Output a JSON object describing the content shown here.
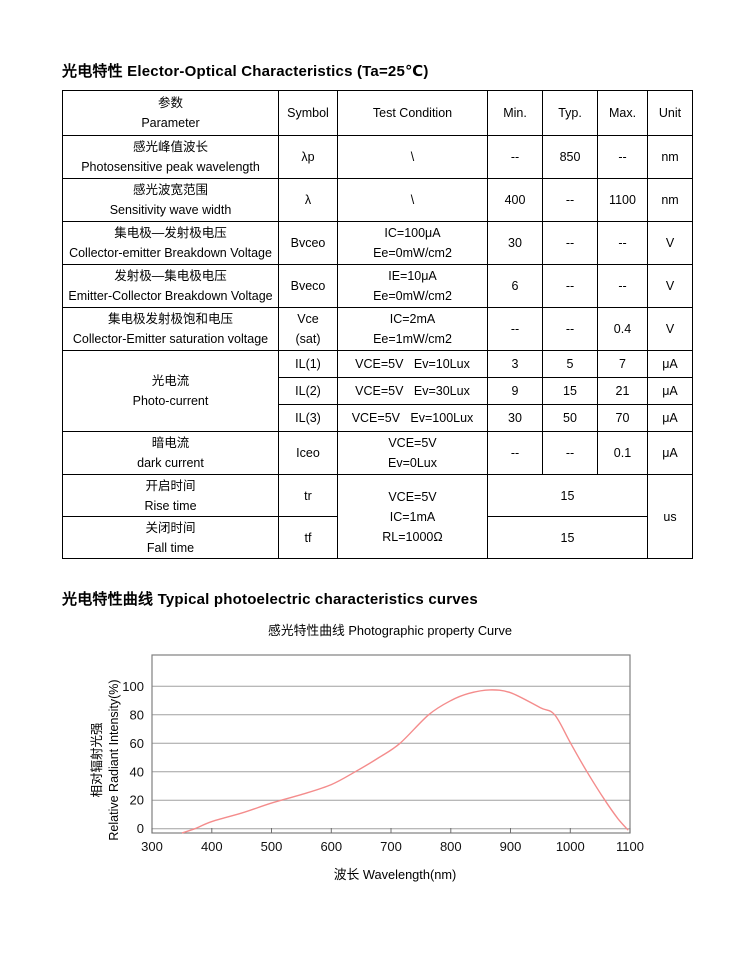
{
  "page": {
    "eo_title": "光电特性 Elector-Optical Characteristics (Ta=25℃)",
    "curves_title": "光电特性曲线 Typical photoelectric characteristics curves"
  },
  "table": {
    "header": {
      "param_zh": "参数",
      "param_en": "Parameter",
      "symbol": "Symbol",
      "cond": "Test Condition",
      "min": "Min.",
      "typ": "Typ.",
      "max": "Max.",
      "unit": "Unit"
    },
    "rows": [
      {
        "zh": "感光峰值波长",
        "en": "Photosensitive peak wavelength",
        "sym": "λp",
        "c1": "\\",
        "min": "--",
        "typ": "850",
        "max": "--",
        "unit": "nm"
      },
      {
        "zh": "感光波宽范围",
        "en": "Sensitivity wave width",
        "sym": "λ",
        "c1": "\\",
        "min": "400",
        "typ": "--",
        "max": "1100",
        "unit": "nm"
      },
      {
        "zh": "集电极—发射极电压",
        "en": "Collector-emitter Breakdown Voltage",
        "sym": "Bvceo",
        "c1": "IC=100μA",
        "c2": "Ee=0mW/cm2",
        "min": "30",
        "typ": "--",
        "max": "--",
        "unit": "V"
      },
      {
        "zh": "发射极—集电极电压",
        "en": "Emitter-Collector Breakdown Voltage",
        "sym": "Bveco",
        "c1": "IE=10μA",
        "c2": "Ee=0mW/cm2",
        "min": "6",
        "typ": "--",
        "max": "--",
        "unit": "V"
      },
      {
        "zh": "集电极发射极饱和电压",
        "en": "Collector-Emitter saturation voltage",
        "sym": "Vce",
        "sym2": "(sat)",
        "c1": "IC=2mA",
        "c2": "Ee=1mW/cm2",
        "min": "--",
        "typ": "--",
        "max": "0.4",
        "unit": "V"
      },
      {
        "zh": "光电流",
        "en": "Photo-current",
        "sym": "IL(1)",
        "c1": "VCE=5V   Ev=10Lux",
        "min": "3",
        "typ": "5",
        "max": "7",
        "unit": "μA"
      },
      {
        "sym": "IL(2)",
        "c1": "VCE=5V   Ev=30Lux",
        "min": "9",
        "typ": "15",
        "max": "21",
        "unit": "μA"
      },
      {
        "sym": "IL(3)",
        "c1": "VCE=5V   Ev=100Lux",
        "min": "30",
        "typ": "50",
        "max": "70",
        "unit": "μA"
      },
      {
        "zh": "暗电流",
        "en": "dark current",
        "sym": "Iceo",
        "c1": "VCE=5V",
        "c2": "Ev=0Lux",
        "min": "--",
        "typ": "--",
        "max": "0.1",
        "unit": "μA"
      },
      {
        "zh": "开启时间",
        "en": "Rise time",
        "sym": "tr",
        "c1": "VCE=5V",
        "c2": "IC=1mA",
        "c3": "RL=1000Ω",
        "val": "15",
        "unit": "us"
      },
      {
        "zh": "关闭时间",
        "en": "Fall time",
        "sym": "tf",
        "val": "15"
      }
    ]
  },
  "chart_data": {
    "type": "line",
    "title": "感光特性曲线  Photographic property Curve",
    "xlabel": "波长  Wavelength(nm)",
    "ylabel_zh": "相对辐射光强",
    "ylabel_en": "Relative  Radiant Intensity(%)",
    "xlim": [
      300,
      1100
    ],
    "ylim": [
      -3,
      122
    ],
    "xticks": [
      300,
      400,
      500,
      600,
      700,
      800,
      900,
      1000,
      1100
    ],
    "yticks": [
      0,
      20,
      40,
      60,
      80,
      100
    ],
    "grid": "horizontal",
    "legend": "none",
    "line_color": "#f48c8c",
    "grid_color": "#a0a0a0",
    "border_color": "#808080",
    "tick_color": "#707070",
    "series": [
      {
        "name": "relative radiant intensity",
        "x": [
          350,
          372,
          400,
          450,
          500,
          550,
          600,
          640,
          680,
          715,
          763,
          800,
          830,
          865,
          900,
          950,
          974,
          1000,
          1028,
          1058,
          1080,
          1097
        ],
        "y": [
          -3,
          0,
          5,
          11,
          18,
          24,
          31,
          40,
          50,
          60,
          80,
          90,
          95,
          97.5,
          95.5,
          85,
          80,
          60.5,
          40,
          20,
          7,
          -1
        ]
      }
    ]
  }
}
